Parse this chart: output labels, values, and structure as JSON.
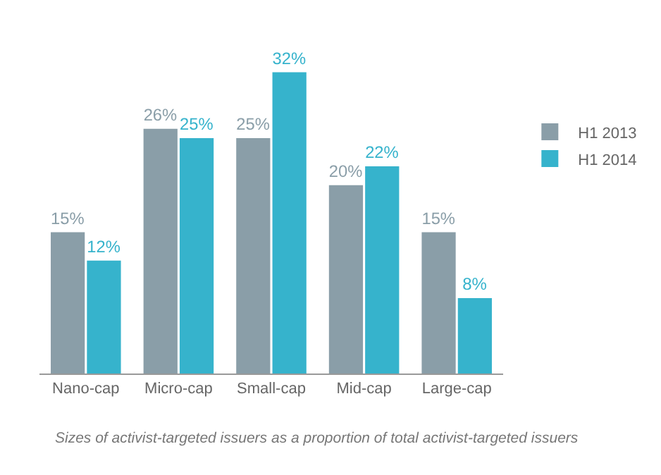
{
  "chart_data": {
    "type": "bar",
    "categories": [
      "Nano-cap",
      "Micro-cap",
      "Small-cap",
      "Mid-cap",
      "Large-cap"
    ],
    "series": [
      {
        "name": "H1 2013",
        "color": "#8a9ea8",
        "values": [
          15,
          26,
          25,
          20,
          15
        ],
        "value_labels": [
          "15%",
          "26%",
          "25%",
          "20%",
          "15%"
        ]
      },
      {
        "name": "H1 2014",
        "color": "#36b3cc",
        "values": [
          12,
          25,
          32,
          22,
          8
        ],
        "value_labels": [
          "12%",
          "25%",
          "32%",
          "22%",
          "8%"
        ]
      }
    ],
    "annotations": [
      "Sizes of activist-targeted issuers as a proportion of total activist-targeted issuers"
    ],
    "grid": false,
    "legend": "right"
  }
}
